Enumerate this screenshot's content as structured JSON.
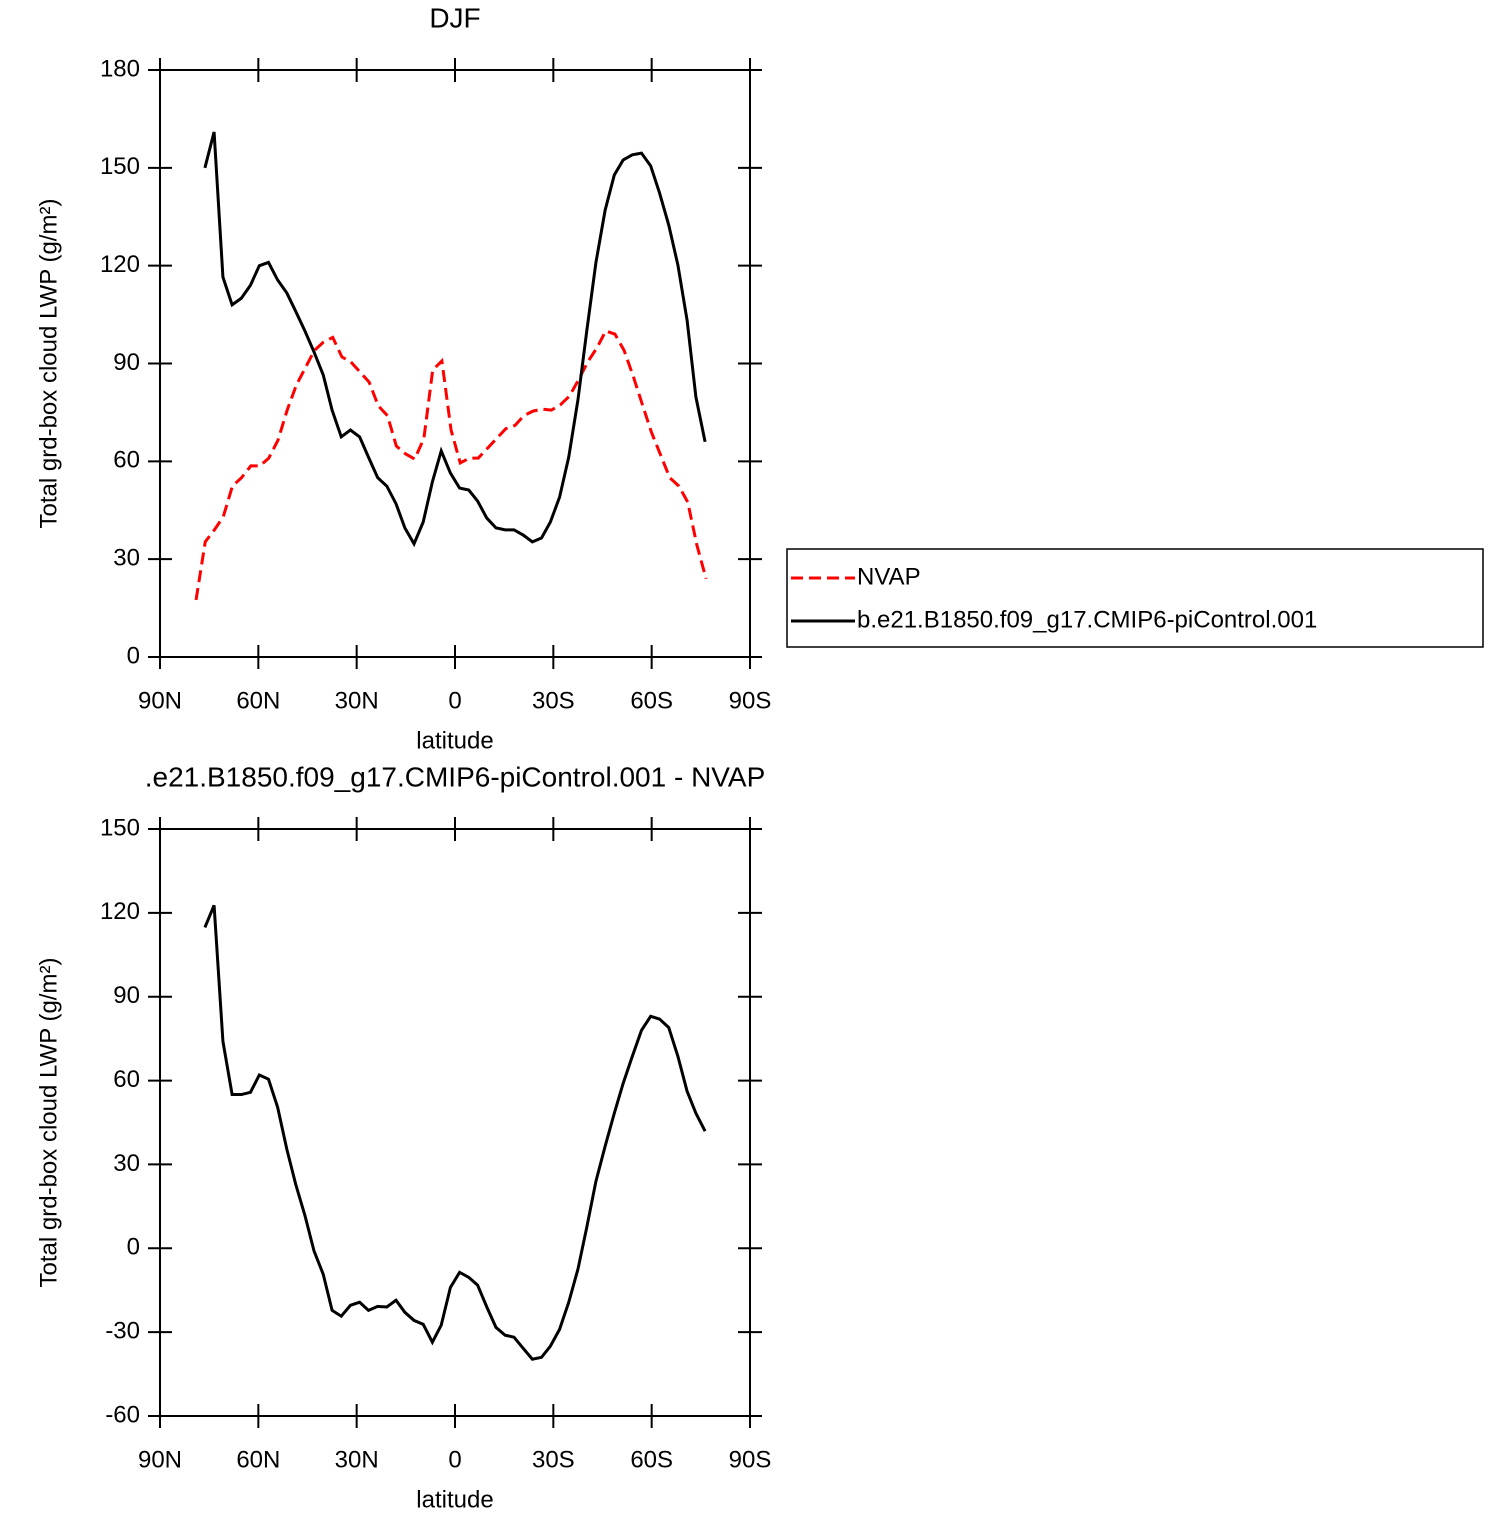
{
  "chart_data": [
    {
      "type": "line",
      "title": "DJF",
      "xlabel": "latitude",
      "ylabel": "Total grd-box cloud LWP (g/m²)",
      "xlim": [
        90,
        -90
      ],
      "xticks": [
        {
          "value": 90,
          "label": "90N"
        },
        {
          "value": 60,
          "label": "60N"
        },
        {
          "value": 30,
          "label": "30N"
        },
        0,
        {
          "value": -30,
          "label": "30S"
        },
        {
          "value": -60,
          "label": "60S"
        },
        {
          "value": -90,
          "label": "90S"
        }
      ],
      "ylim": [
        0,
        180
      ],
      "yticks": [
        0,
        30,
        60,
        90,
        120,
        150,
        180
      ],
      "legend": "right",
      "series": [
        {
          "name": "NVAP",
          "color": "#ff0000",
          "linestyle": "dashed",
          "x": [
            79.0,
            76.2,
            73.4,
            70.7,
            67.9,
            65.1,
            62.3,
            59.5,
            56.8,
            54.0,
            51.2,
            48.4,
            45.7,
            42.9,
            40.1,
            37.3,
            34.5,
            31.8,
            29.0,
            26.2,
            23.4,
            20.6,
            17.9,
            15.1,
            12.3,
            9.5,
            6.8,
            4.0,
            1.2,
            -1.6,
            -4.4,
            -7.1,
            -9.9,
            -12.7,
            -15.5,
            -18.3,
            -21.0,
            -23.8,
            -26.6,
            -29.4,
            -32.1,
            -34.9,
            -37.7,
            -40.5,
            -43.3,
            -46.0,
            -48.8,
            -51.6,
            -54.4,
            -57.2,
            -59.9,
            -62.7,
            -65.5,
            -68.3,
            -71.0,
            -73.8,
            -76.6
          ],
          "values": [
            17.5,
            35.3,
            39,
            43,
            52.4,
            55,
            58.6,
            58.6,
            61,
            66.5,
            75.7,
            83.4,
            88.6,
            94,
            96.6,
            98,
            92,
            90.5,
            87.4,
            84.3,
            77,
            74,
            64.7,
            62.3,
            60.7,
            67,
            88,
            90.8,
            69.6,
            59.5,
            61,
            61,
            64,
            67,
            70,
            71,
            74,
            75.4,
            76,
            75.7,
            77.3,
            80,
            85,
            90.5,
            94.8,
            100,
            99,
            94,
            86,
            77.3,
            69,
            62,
            55,
            52.4,
            47.5,
            34.3,
            24
          ]
        },
        {
          "name": "b.e21.B1850.f09_g17.CMIP6-piControl.001",
          "color": "#000000",
          "linestyle": "solid",
          "x": [
            76.3,
            73.5,
            70.8,
            68.0,
            65.2,
            62.4,
            59.7,
            56.9,
            54.1,
            51.3,
            48.6,
            45.8,
            43.0,
            40.2,
            37.5,
            34.7,
            31.9,
            29.1,
            26.4,
            23.6,
            20.8,
            18.0,
            15.3,
            12.5,
            9.7,
            6.9,
            4.2,
            1.4,
            -1.4,
            -4.2,
            -6.9,
            -9.7,
            -12.5,
            -15.3,
            -18.0,
            -20.8,
            -23.6,
            -26.4,
            -29.1,
            -31.9,
            -34.7,
            -37.5,
            -40.2,
            -43.0,
            -45.8,
            -48.6,
            -51.3,
            -54.1,
            -56.9,
            -59.7,
            -62.4,
            -65.2,
            -68.0,
            -70.8,
            -73.5,
            -76.3
          ],
          "values": [
            150,
            161,
            116.5,
            108,
            110,
            114,
            120,
            121,
            115.6,
            111.6,
            106,
            100,
            93.5,
            86.5,
            75.7,
            67.5,
            69.6,
            67.5,
            61.3,
            55,
            52.4,
            47,
            39.6,
            34.7,
            41.4,
            53.7,
            63.2,
            56.4,
            51.8,
            51.2,
            47.8,
            42.6,
            39.6,
            39,
            39,
            37.4,
            35.3,
            36.5,
            41.4,
            49,
            61.3,
            78.8,
            100,
            121,
            137,
            147.8,
            152.4,
            154,
            154.5,
            150.6,
            142.3,
            132.5,
            120.2,
            103.3,
            79.7,
            66
          ]
        }
      ]
    },
    {
      "type": "line",
      "title": ".e21.B1850.f09_g17.CMIP6-piControl.001  -  NVAP",
      "xlabel": "latitude",
      "ylabel": "Total grd-box cloud LWP (g/m²)",
      "xlim": [
        90,
        -90
      ],
      "xticks": [
        {
          "value": 90,
          "label": "90N"
        },
        {
          "value": 60,
          "label": "60N"
        },
        {
          "value": 30,
          "label": "30N"
        },
        0,
        {
          "value": -30,
          "label": "30S"
        },
        {
          "value": -60,
          "label": "60S"
        },
        {
          "value": -90,
          "label": "90S"
        }
      ],
      "ylim": [
        -60,
        150
      ],
      "yticks": [
        -60,
        -30,
        0,
        30,
        60,
        90,
        120,
        150
      ],
      "series": [
        {
          "color": "#000000",
          "linestyle": "solid",
          "x": [
            76.3,
            73.5,
            70.8,
            68.0,
            65.2,
            62.4,
            59.7,
            56.9,
            54.1,
            51.3,
            48.6,
            45.8,
            43.0,
            40.2,
            37.5,
            34.7,
            31.9,
            29.1,
            26.4,
            23.6,
            20.8,
            18.0,
            15.3,
            12.5,
            9.7,
            6.9,
            4.2,
            1.4,
            -1.4,
            -4.2,
            -6.9,
            -9.7,
            -12.5,
            -15.3,
            -18.0,
            -20.8,
            -23.6,
            -26.4,
            -29.1,
            -31.9,
            -34.7,
            -37.5,
            -40.2,
            -43.0,
            -45.8,
            -48.6,
            -51.3,
            -54.1,
            -56.9,
            -59.7,
            -62.4,
            -65.2,
            -68.0,
            -70.8,
            -73.5,
            -76.3
          ],
          "values": [
            114.8,
            122.7,
            74,
            55,
            55,
            55.8,
            62,
            60.5,
            50.4,
            35.4,
            22.9,
            11.8,
            -1,
            -9.3,
            -22.2,
            -24.3,
            -20.4,
            -19.3,
            -22.2,
            -20.8,
            -21,
            -18.6,
            -22.9,
            -25.8,
            -27.2,
            -33.6,
            -27.5,
            -14,
            -8.6,
            -10.4,
            -13.2,
            -21,
            -28.3,
            -31.1,
            -31.8,
            -35.8,
            -39.7,
            -39,
            -35,
            -29,
            -19.3,
            -7.5,
            7.5,
            24,
            36.5,
            48.3,
            59,
            68.7,
            78,
            83,
            82,
            79,
            68.7,
            56.2,
            48.3,
            41.9
          ]
        }
      ]
    }
  ]
}
